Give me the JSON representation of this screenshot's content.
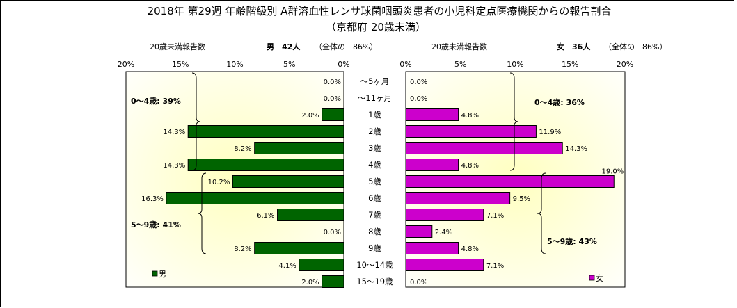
{
  "chart_data": {
    "type": "bar",
    "title": "2018年 第29週 年齢階級別 A群溶血性レンサ球菌咽頭炎患者の小児科定点医療機関からの報告割合",
    "subtitle": "（京都府 20歳未満）",
    "categories": [
      "～5ヶ月",
      "～11ヶ月",
      "1歳",
      "2歳",
      "3歳",
      "4歳",
      "5歳",
      "6歳",
      "7歳",
      "8歳",
      "9歳",
      "10～14歳",
      "15～19歳"
    ],
    "xlim": [
      0,
      20
    ],
    "ticks": [
      "0%",
      "5%",
      "10%",
      "15%",
      "20%"
    ],
    "bar_colors": {
      "male": "#006400",
      "female": "#cc00cc"
    },
    "background": {
      "center": "#ffffc0",
      "edge": "#ffffff"
    },
    "series": [
      {
        "name": "男",
        "side": "left",
        "values": [
          0.0,
          0.0,
          2.0,
          14.3,
          8.2,
          14.3,
          10.2,
          16.3,
          6.1,
          0.0,
          8.2,
          4.1,
          2.0
        ],
        "labels": [
          "0.0%",
          "0.0%",
          "2.0%",
          "14.3%",
          "8.2%",
          "14.3%",
          "10.2%",
          "16.3%",
          "6.1%",
          "0.0%",
          "8.2%",
          "4.1%",
          "2.0%"
        ],
        "legend": "男",
        "header": {
          "count_label": "20歳未満報告数",
          "count": "男　42人",
          "share": "（全体の　86%）"
        },
        "groups": [
          {
            "label": "0～4歳: 39%",
            "from": 0,
            "to": 5
          },
          {
            "label": "5～9歳: 41%",
            "from": 6,
            "to": 10
          }
        ]
      },
      {
        "name": "女",
        "side": "right",
        "values": [
          0.0,
          0.0,
          4.8,
          11.9,
          14.3,
          4.8,
          19.0,
          9.5,
          7.1,
          2.4,
          4.8,
          7.1,
          0.0
        ],
        "labels": [
          "0.0%",
          "0.0%",
          "4.8%",
          "11.9%",
          "14.3%",
          "4.8%",
          "19.0%",
          "9.5%",
          "7.1%",
          "2.4%",
          "4.8%",
          "7.1%",
          "0.0%"
        ],
        "legend": "女",
        "header": {
          "count_label": "20歳未満報告数",
          "count": "女　36人",
          "share": "（全体の　86%）"
        },
        "groups": [
          {
            "label": "0～4歳: 36%",
            "from": 0,
            "to": 5
          },
          {
            "label": "5～9歳: 43%",
            "from": 6,
            "to": 10
          }
        ]
      }
    ]
  }
}
